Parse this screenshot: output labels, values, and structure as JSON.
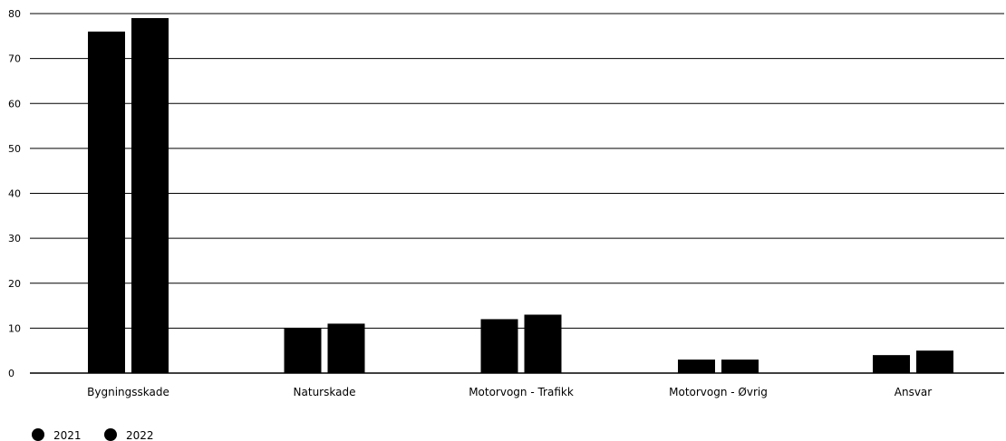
{
  "chart_data": {
    "type": "bar",
    "title": "",
    "xlabel": "",
    "ylabel": "",
    "categories": [
      "Bygningsskade",
      "Naturskade",
      "Motorvogn - Trafikk",
      "Motorvogn - Øvrig",
      "Ansvar"
    ],
    "series": [
      {
        "name": "2021",
        "values": [
          76,
          10,
          12,
          3,
          4
        ],
        "color": "#000000"
      },
      {
        "name": "2022",
        "values": [
          79,
          11,
          13,
          3,
          5
        ],
        "color": "#000000"
      }
    ],
    "ylim": [
      0,
      80
    ],
    "yticks": [
      0,
      10,
      20,
      30,
      40,
      50,
      60,
      70,
      80
    ],
    "grid": true,
    "legend_position": "bottom-left"
  }
}
